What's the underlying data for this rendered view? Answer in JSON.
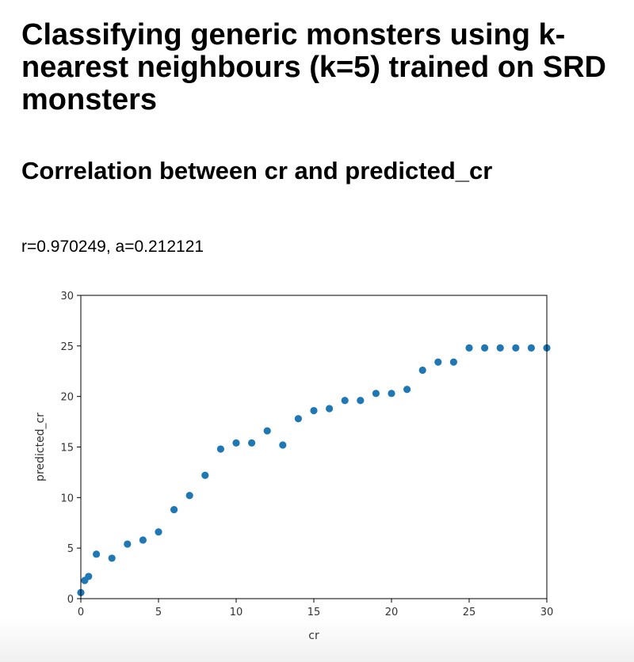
{
  "page": {
    "title": "Classifying generic monsters using k-nearest neighbours (k=5) trained on SRD monsters",
    "subtitle": "Correlation between cr and predicted_cr",
    "stats": "r=0.970249, a=0.212121"
  },
  "chart_data": {
    "type": "scatter",
    "xlabel": "cr",
    "ylabel": "predicted_cr",
    "xlim": [
      0,
      30
    ],
    "ylim": [
      0,
      30
    ],
    "xticks": [
      0,
      5,
      10,
      15,
      20,
      25,
      30
    ],
    "yticks": [
      0,
      5,
      10,
      15,
      20,
      25,
      30
    ],
    "grid": false,
    "point_color": "#1f77b4",
    "series": [
      {
        "x": [
          0,
          0.25,
          0.5,
          1,
          2,
          3,
          4,
          5,
          6,
          7,
          8,
          9,
          10,
          11,
          12,
          13,
          14,
          15,
          16,
          17,
          18,
          19,
          20,
          21,
          22,
          23,
          24,
          25,
          26,
          27,
          28,
          29,
          30
        ],
        "y": [
          0.6,
          1.8,
          2.2,
          4.4,
          4.0,
          5.4,
          5.8,
          6.6,
          8.8,
          10.2,
          12.2,
          14.8,
          15.4,
          15.4,
          16.6,
          15.2,
          17.8,
          18.6,
          18.8,
          19.6,
          19.6,
          20.3,
          20.3,
          20.7,
          22.6,
          23.4,
          23.4,
          24.8,
          24.8,
          24.8,
          24.8,
          24.8,
          24.8
        ]
      }
    ]
  }
}
